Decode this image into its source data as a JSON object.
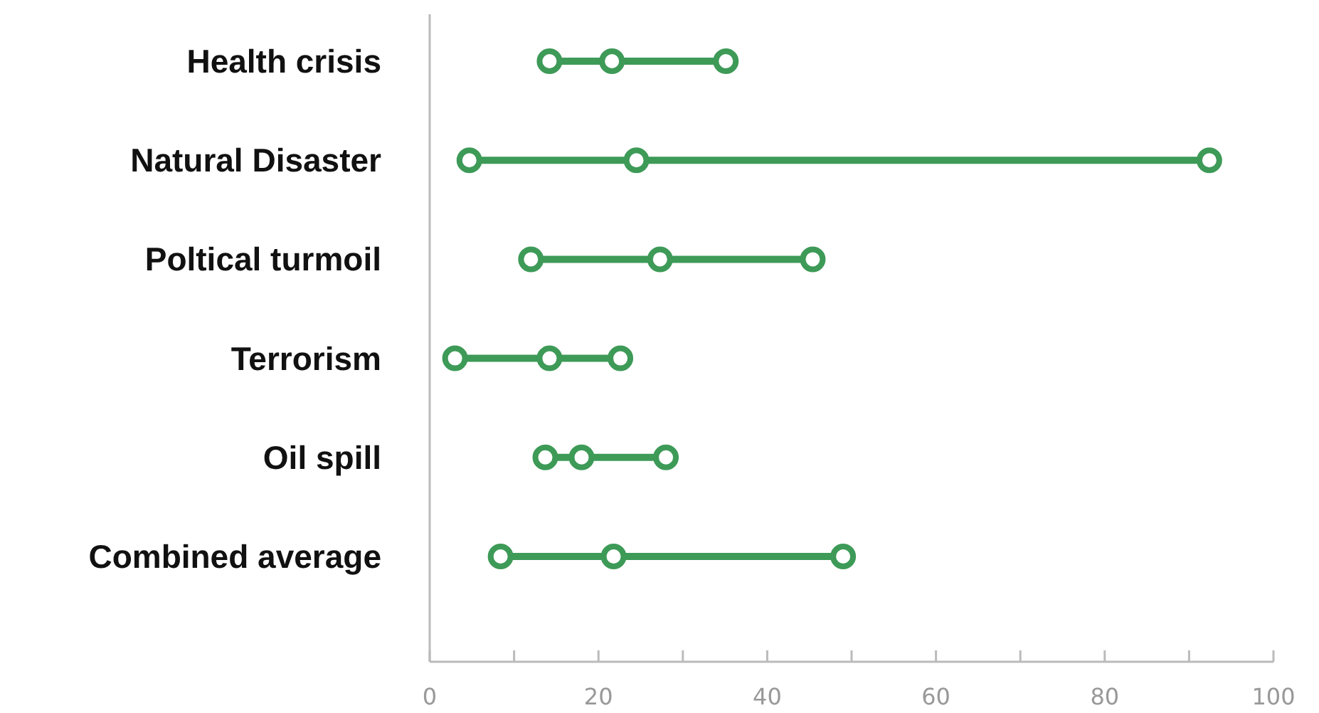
{
  "chart_data": {
    "type": "scatter",
    "orientation": "horizontal",
    "marker": "circle",
    "grid": false,
    "categories": [
      "Health crisis",
      "Natural Disaster",
      "Poltical turmoil",
      "Terrorism",
      "Oil spill",
      "Combined average"
    ],
    "series": [
      {
        "color": "#3d9a57",
        "values": [
          14.2,
          4.7,
          12,
          3,
          13.7,
          8.4
        ]
      },
      {
        "color": "#3d9a57",
        "values": [
          21.6,
          24.5,
          27.3,
          14.2,
          18,
          21.8
        ]
      },
      {
        "color": "#3d9a57",
        "values": [
          35.1,
          92.4,
          45.4,
          22.6,
          28,
          49
        ]
      }
    ],
    "xlim": [
      0,
      100
    ],
    "xticks": [
      0,
      {
        "value": 10,
        "label": null
      },
      20,
      {
        "value": 30,
        "label": null
      },
      40,
      {
        "value": 50,
        "label": null
      },
      60,
      {
        "value": 70,
        "label": null
      },
      80,
      {
        "value": 90,
        "label": null
      },
      100
    ]
  }
}
